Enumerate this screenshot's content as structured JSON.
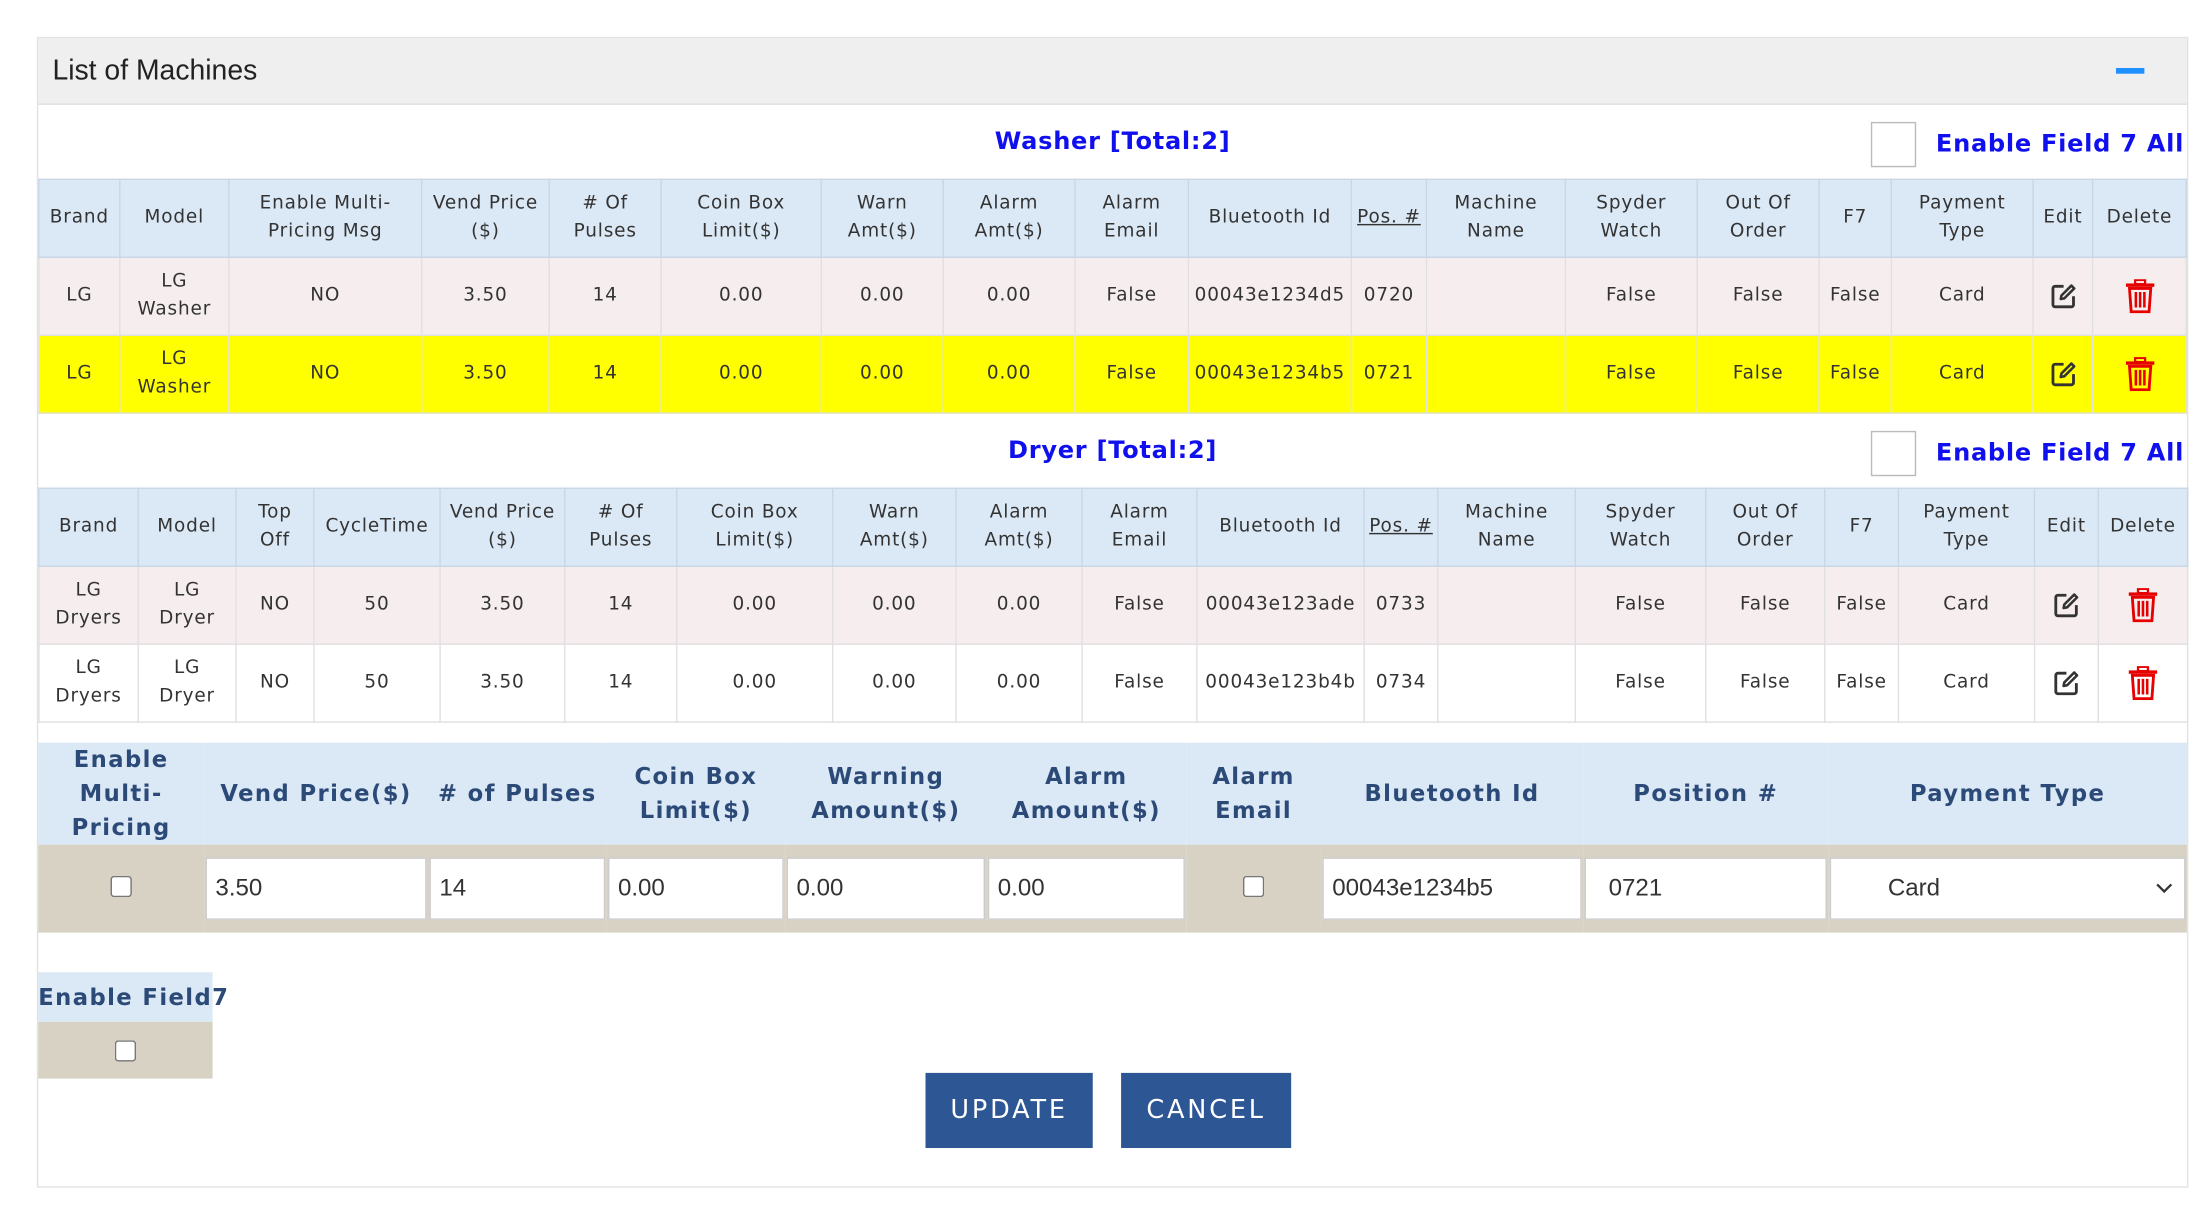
{
  "panel": {
    "title": "List of Machines"
  },
  "washer": {
    "title": "Washer [Total:2]",
    "enable_all_label": "Enable Field 7 All",
    "headers": [
      "Brand",
      "Model",
      "Enable Multi-Pricing Msg",
      "Vend Price ($)",
      "# Of Pulses",
      "Coin Box Limit($)",
      "Warn Amt($)",
      "Alarm Amt($)",
      "Alarm Email",
      "Bluetooth Id",
      "Pos. #",
      "Machine Name",
      "Spyder Watch",
      "Out Of Order",
      "F7",
      "Payment Type",
      "Edit",
      "Delete"
    ],
    "rows": [
      [
        "LG",
        "LG Washer",
        "NO",
        "3.50",
        "14",
        "0.00",
        "0.00",
        "0.00",
        "False",
        "00043e1234d5",
        "0720",
        "",
        "False",
        "False",
        "False",
        "Card"
      ],
      [
        "LG",
        "LG Washer",
        "NO",
        "3.50",
        "14",
        "0.00",
        "0.00",
        "0.00",
        "False",
        "00043e1234b5",
        "0721",
        "",
        "False",
        "False",
        "False",
        "Card"
      ]
    ]
  },
  "dryer": {
    "title": "Dryer [Total:2]",
    "enable_all_label": "Enable Field 7 All",
    "headers": [
      "Brand",
      "Model",
      "Top Off",
      "CycleTime",
      "Vend Price ($)",
      "# Of Pulses",
      "Coin Box Limit($)",
      "Warn Amt($)",
      "Alarm Amt($)",
      "Alarm Email",
      "Bluetooth Id",
      "Pos. #",
      "Machine Name",
      "Spyder Watch",
      "Out Of Order",
      "F7",
      "Payment Type",
      "Edit",
      "Delete"
    ],
    "rows": [
      [
        "LG Dryers",
        "LG Dryer",
        "NO",
        "50",
        "3.50",
        "14",
        "0.00",
        "0.00",
        "0.00",
        "False",
        "00043e123ade",
        "0733",
        "",
        "False",
        "False",
        "False",
        "Card"
      ],
      [
        "LG Dryers",
        "LG Dryer",
        "NO",
        "50",
        "3.50",
        "14",
        "0.00",
        "0.00",
        "0.00",
        "False",
        "00043e123b4b",
        "0734",
        "",
        "False",
        "False",
        "False",
        "Card"
      ]
    ]
  },
  "form": {
    "labels": {
      "multi_pricing": "Enable Multi-Pricing",
      "vend_price": "Vend Price($)",
      "pulses": "# of Pulses",
      "coin_box": "Coin Box Limit($)",
      "warning": "Warning Amount($)",
      "alarm": "Alarm Amount($)",
      "alarm_email": "Alarm Email",
      "bluetooth": "Bluetooth Id",
      "position": "Position #",
      "payment": "Payment Type",
      "field7": "Enable Field7"
    },
    "values": {
      "vend_price": "3.50",
      "pulses": "14",
      "coin_box": "0.00",
      "warning": "0.00",
      "alarm": "0.00",
      "bluetooth": "00043e1234b5",
      "position": "0721",
      "payment": "Card"
    }
  },
  "buttons": {
    "update": "UPDATE",
    "cancel": "CANCEL"
  },
  "colors": {
    "title_blue": "#1010ee",
    "header_bg": "#dbe8f5",
    "selected_row": "#ffff00",
    "button": "#2d5694",
    "delete_red": "#e60000",
    "collapse": "#1e90ff"
  },
  "icons": {
    "edit": "edit-icon",
    "delete": "trash-icon",
    "collapse": "minus-icon",
    "dropdown": "chevron-down-icon"
  }
}
